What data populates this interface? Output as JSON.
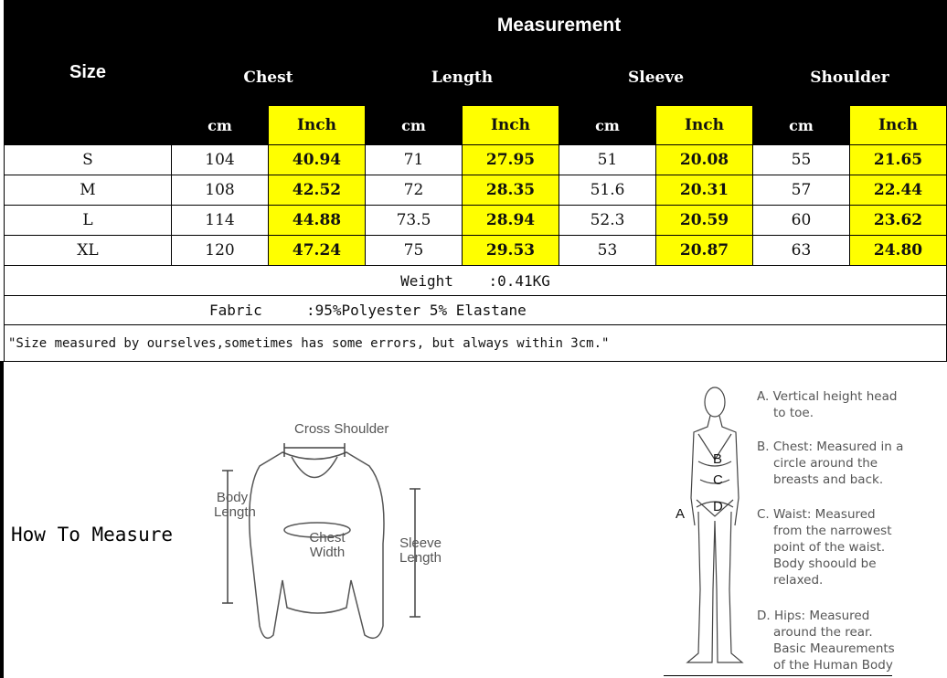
{
  "table": {
    "size_header": "Size",
    "measurement_header": "Measurement",
    "categories": [
      "Chest",
      "Length",
      "Sleeve",
      "Shoulder"
    ],
    "units": [
      "cm",
      "Inch"
    ],
    "rows": [
      {
        "size": "S",
        "values": [
          "104",
          "40.94",
          "71",
          "27.95",
          "51",
          "20.08",
          "55",
          "21.65"
        ]
      },
      {
        "size": "M",
        "values": [
          "108",
          "42.52",
          "72",
          "28.35",
          "51.6",
          "20.31",
          "57",
          "22.44"
        ]
      },
      {
        "size": "L",
        "values": [
          "114",
          "44.88",
          "73.5",
          "28.94",
          "52.3",
          "20.59",
          "60",
          "23.62"
        ]
      },
      {
        "size": "XL",
        "values": [
          "120",
          "47.24",
          "75",
          "29.53",
          "53",
          "20.87",
          "63",
          "24.80"
        ]
      }
    ],
    "weight": "Weight    :0.41KG",
    "fabric": "Fabric     :95%Polyester 5% Elastane",
    "note": "\"Size measured by ourselves,sometimes has some errors, but always within 3cm.\""
  },
  "colors": {
    "header_bg": "#000000",
    "inch_bg": "#ffff00"
  },
  "how_to_measure": {
    "title": "How To Measure",
    "garment_labels": {
      "shoulder": "Cross Shoulder",
      "body_length": "Body Length",
      "chest": "Chest Width",
      "sleeve": "Sleeve Length"
    },
    "body_letters": [
      "A",
      "B",
      "C",
      "D"
    ],
    "descriptions": [
      [
        "A. Vertical height head",
        "to toe."
      ],
      [
        "B. Chest: Measured in a",
        "circle around the",
        "breasts and back."
      ],
      [
        "C. Waist: Measured",
        "from the narrowest",
        "point of the waist.",
        "Body shoould be",
        "relaxed."
      ],
      [
        "D. Hips: Measured",
        "around the rear.",
        "Basic Meaurements",
        "of the Human Body"
      ]
    ]
  }
}
